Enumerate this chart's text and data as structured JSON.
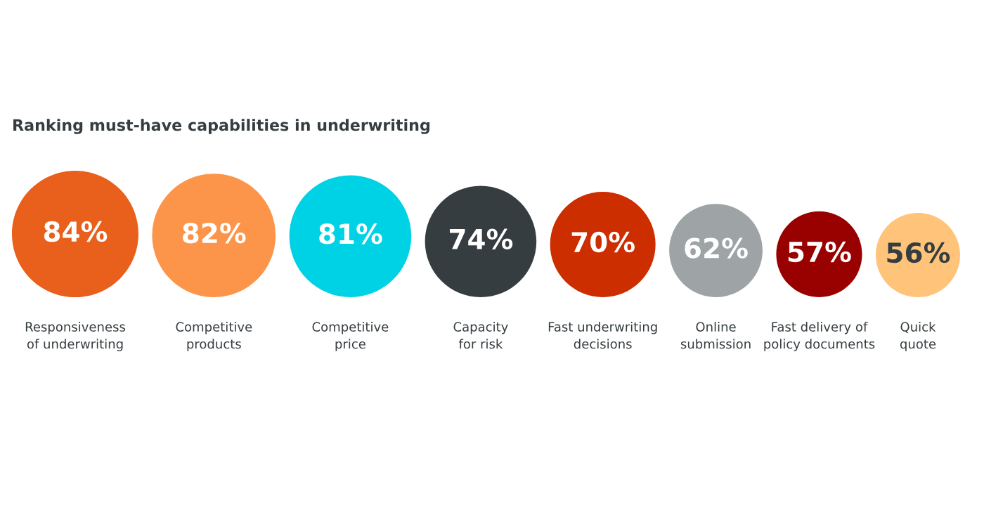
{
  "chart_data": {
    "type": "other",
    "title": "Ranking must-have capabilities in underwriting",
    "categories": [
      "Responsiveness\nof underwriting",
      "Competitive\nproducts",
      "Competitive\nprice",
      "Capacity\nfor risk",
      "Fast underwriting\ndecisions",
      "Online\nsubmission",
      "Fast delivery of\npolicy documents",
      "Quick\nquote"
    ],
    "values": [
      84,
      82,
      81,
      74,
      70,
      62,
      57,
      56
    ],
    "value_labels": [
      "84%",
      "82%",
      "81%",
      "74%",
      "70%",
      "62%",
      "57%",
      "56%"
    ],
    "colors": [
      "#e8601c",
      "#fc9549",
      "#00d2e6",
      "#363d40",
      "#cc2e00",
      "#9ea4a6",
      "#990000",
      "#ffc47a"
    ]
  }
}
